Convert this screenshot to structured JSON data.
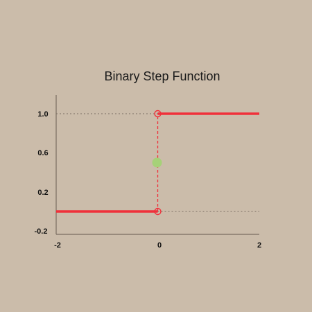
{
  "chart_data": {
    "type": "line",
    "title": "Binary Step Function",
    "xlabel": "",
    "ylabel": "",
    "xlim": [
      -2,
      2
    ],
    "ylim": [
      -0.2,
      1.2
    ],
    "x_ticks": [
      "-2",
      "0",
      "2"
    ],
    "y_ticks": [
      "1.0",
      "0.6",
      "0.2",
      "-0.2"
    ],
    "grid": false,
    "series": [
      {
        "segments": [
          {
            "x": [
              -2,
              0
            ],
            "y": [
              0,
              0
            ]
          },
          {
            "x": [
              0,
              2
            ],
            "y": [
              1,
              1
            ]
          }
        ],
        "color": "#f0303a"
      }
    ],
    "discontinuity": {
      "x": 0,
      "y_low": 0,
      "y_high": 1,
      "color": "#f0303a"
    },
    "open_points": [
      {
        "x": 0,
        "y": 0
      },
      {
        "x": 0,
        "y": 1
      }
    ],
    "midpoint": {
      "x": 0,
      "y": 0.5,
      "color": "#a6d178"
    },
    "guides": [
      {
        "x": [
          -2,
          0
        ],
        "y": [
          1,
          1
        ]
      },
      {
        "x": [
          0,
          2
        ],
        "y": [
          0,
          0
        ]
      }
    ],
    "colors": {
      "background": "#cbbcaa",
      "line": "#f0303a",
      "marker": "#a6d178",
      "guide": "#8a7d70",
      "axis": "#7a6d60"
    }
  }
}
